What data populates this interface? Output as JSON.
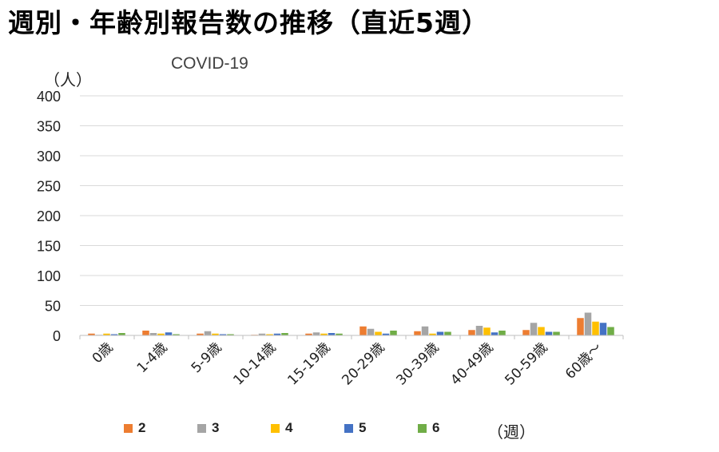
{
  "title": "週別・年齢別報告数の推移（直近5週）",
  "subtitle": "COVID-19",
  "unit_label": "（人）",
  "legend_title": "（週）",
  "colors": {
    "2": "#ED7D31",
    "3": "#A5A5A5",
    "4": "#FFC000",
    "5": "#4472C4",
    "6": "#70AD47"
  },
  "chart_data": {
    "type": "bar",
    "title": "",
    "xlabel": "",
    "ylabel": "（人）",
    "ylim": [
      0,
      400
    ],
    "yticks": [
      0,
      50,
      100,
      150,
      200,
      250,
      300,
      350,
      400
    ],
    "grid": true,
    "legend_position": "bottom",
    "categories": [
      "0歳",
      "1-4歳",
      "5-9歳",
      "10-14歳",
      "15-19歳",
      "20-29歳",
      "30-39歳",
      "40-49歳",
      "50-59歳",
      "60歳～"
    ],
    "series": [
      {
        "name": "2",
        "values": [
          3,
          8,
          3,
          1,
          3,
          15,
          7,
          9,
          9,
          29
        ]
      },
      {
        "name": "3",
        "values": [
          1,
          4,
          7,
          3,
          5,
          11,
          15,
          16,
          21,
          38
        ]
      },
      {
        "name": "4",
        "values": [
          3,
          3,
          3,
          2,
          3,
          6,
          3,
          13,
          14,
          23
        ]
      },
      {
        "name": "5",
        "values": [
          2,
          5,
          2,
          3,
          4,
          3,
          6,
          5,
          6,
          21
        ]
      },
      {
        "name": "6",
        "values": [
          4,
          2,
          2,
          4,
          3,
          8,
          6,
          8,
          6,
          14
        ]
      }
    ]
  }
}
